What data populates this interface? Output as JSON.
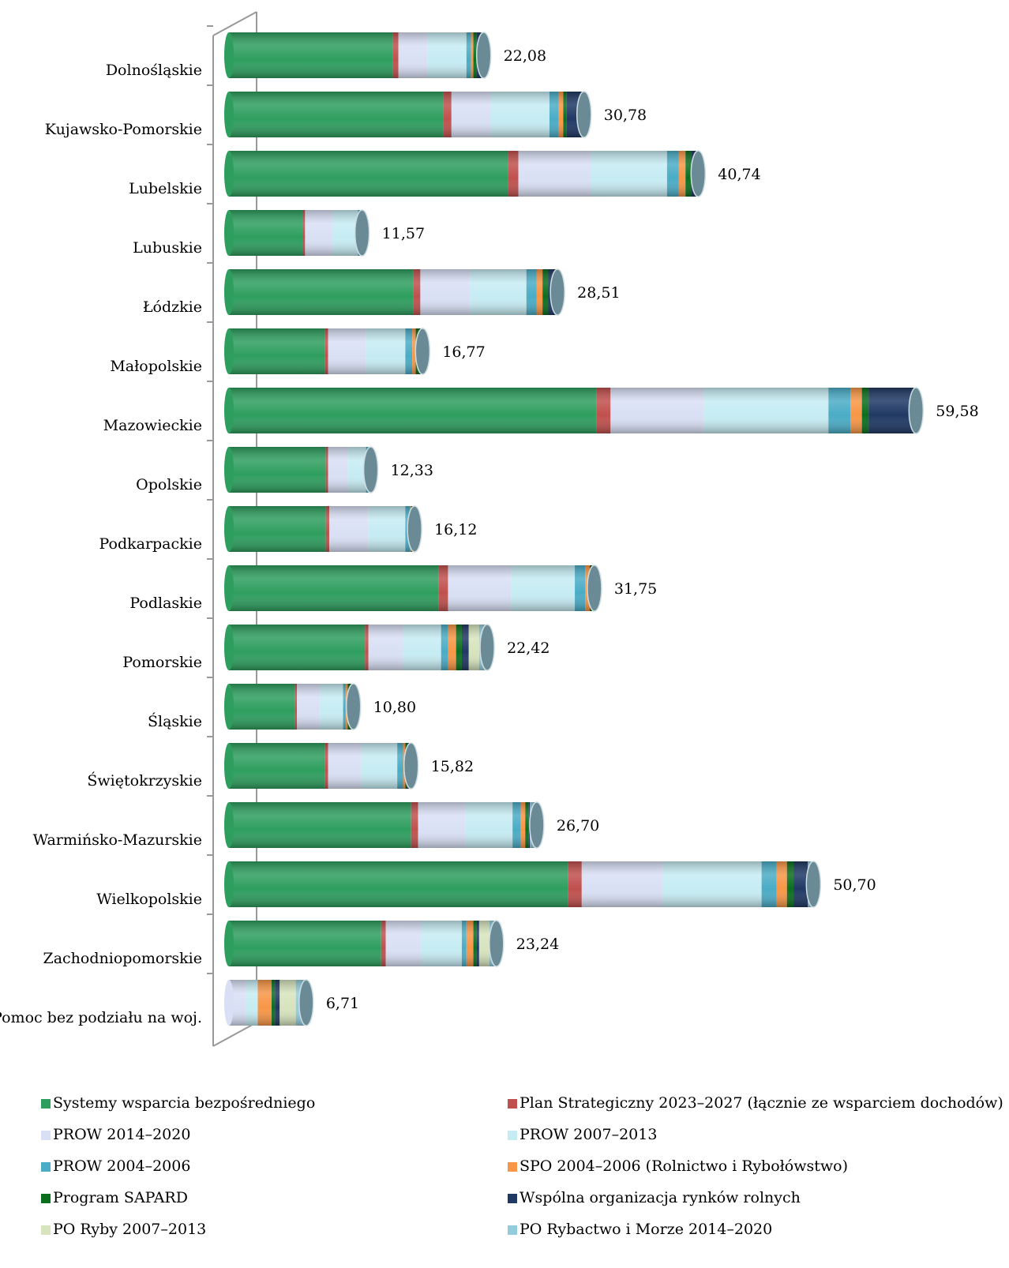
{
  "chart_data": {
    "type": "stacked-bar-horizontal",
    "categories": [
      "Dolnośląskie",
      "Kujawsko-Pomorskie",
      "Lubelskie",
      "Lubuskie",
      "Łódzkie",
      "Małopolskie",
      "Mazowieckie",
      "Opolskie",
      "Podkarpackie",
      "Podlaskie",
      "Pomorskie",
      "Śląskie",
      "Świętokrzyskie",
      "Warmińsko-Mazurskie",
      "Wielkopolskie",
      "Zachodniopomorskie",
      "Pomoc bez podziału na woj."
    ],
    "series": [
      {
        "name": "Systemy wsparcia bezpośredniego",
        "color": "#2e9e5e",
        "values": [
          14.2,
          18.6,
          24.2,
          6.4,
          16.0,
          8.3,
          31.9,
          8.4,
          8.4,
          18.2,
          11.8,
          5.7,
          8.3,
          15.8,
          29.4,
          13.2,
          0
        ]
      },
      {
        "name": "Plan Strategiczny 2023–2027 (łącznie ze wsparciem dochodów)",
        "color": "#c0504d",
        "values": [
          0.5,
          0.7,
          0.9,
          0.2,
          0.6,
          0.3,
          1.2,
          0.2,
          0.3,
          0.8,
          0.3,
          0.2,
          0.3,
          0.6,
          1.2,
          0.4,
          0
        ]
      },
      {
        "name": "PROW 2014–2020",
        "color": "#d9e0f5",
        "values": [
          2.5,
          3.4,
          6.3,
          2.4,
          4.3,
          3.3,
          8.1,
          1.7,
          3.4,
          5.5,
          3.0,
          2.0,
          2.9,
          4.1,
          7.0,
          3.1,
          1.5
        ]
      },
      {
        "name": "PROW 2007–2013",
        "color": "#c6ecf3",
        "values": [
          3.4,
          5.1,
          6.6,
          2.2,
          4.9,
          3.4,
          10.8,
          1.6,
          3.2,
          5.5,
          3.3,
          2.0,
          3.1,
          4.1,
          8.6,
          3.5,
          1.0
        ]
      },
      {
        "name": "PROW 2004–2006",
        "color": "#4aacc6",
        "values": [
          0.4,
          0.8,
          1.0,
          0.2,
          0.9,
          0.6,
          1.9,
          0.2,
          0.4,
          0.9,
          0.6,
          0.2,
          0.5,
          0.7,
          1.3,
          0.4,
          0
        ]
      },
      {
        "name": "SPO 2004–2006 (Rolnictwo i Rybołówstwo)",
        "color": "#f79646",
        "values": [
          0.2,
          0.4,
          0.6,
          0.05,
          0.5,
          0.3,
          1.0,
          0.1,
          0.1,
          0.4,
          0.7,
          0.2,
          0.2,
          0.4,
          0.9,
          0.6,
          1.2
        ]
      },
      {
        "name": "Program SAPARD",
        "color": "#0b6e1f",
        "values": [
          0.3,
          0.3,
          0.5,
          0.1,
          0.5,
          0.3,
          0.6,
          0.1,
          0.2,
          0.3,
          0.5,
          0.3,
          0.2,
          0.3,
          0.6,
          0.3,
          0.3
        ]
      },
      {
        "name": "Wspólna organizacja rynków rolnych",
        "color": "#1f3864",
        "values": [
          0.4,
          1.3,
          0.5,
          0,
          0.7,
          0.2,
          3.9,
          0,
          0,
          0,
          0.6,
          0.1,
          0.3,
          0.1,
          1.2,
          0.2,
          0.4
        ]
      },
      {
        "name": "PO Ryby 2007–2013",
        "color": "#d7e4bd",
        "values": [
          0,
          0,
          0,
          0,
          0,
          0,
          0,
          0,
          0,
          0,
          0.9,
          0,
          0,
          0,
          0,
          0.9,
          1.4
        ]
      },
      {
        "name": "PO Rybactwo i Morze 2014–2020",
        "color": "#93cddd",
        "values": [
          0.2,
          0.2,
          0.1,
          0,
          0.1,
          0.1,
          0.2,
          0,
          0.1,
          0.1,
          0.7,
          0.1,
          0,
          0.6,
          0.5,
          0.6,
          0.9
        ]
      }
    ],
    "totals": [
      22.08,
      30.78,
      40.74,
      11.57,
      28.51,
      16.77,
      59.58,
      12.33,
      16.12,
      31.75,
      22.42,
      10.8,
      15.82,
      26.7,
      50.7,
      23.24,
      6.71
    ],
    "total_labels": [
      "22,08",
      "30,78",
      "40,74",
      "11,57",
      "28,51",
      "16,77",
      "59,58",
      "12,33",
      "16,12",
      "31,75",
      "22,42",
      "10,80",
      "15,82",
      "26,70",
      "50,70",
      "23,24",
      "6,71"
    ],
    "legend": "bottom"
  }
}
